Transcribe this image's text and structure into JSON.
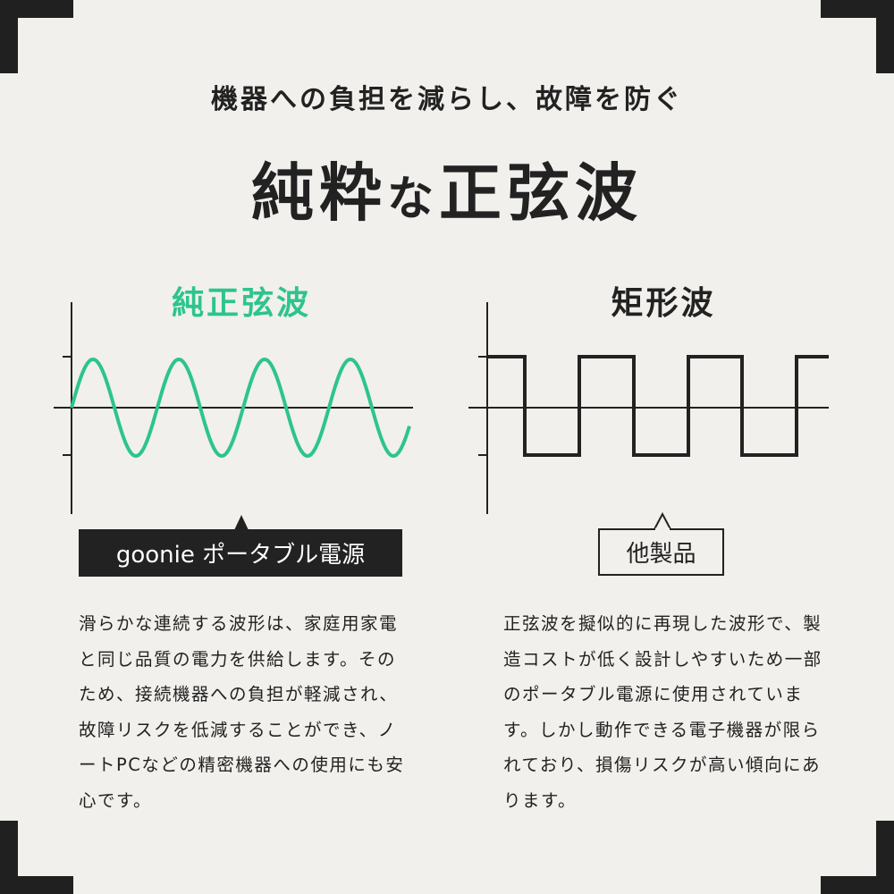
{
  "header": {
    "subtitle": "機器への負担を減らし、故障を防ぐ",
    "title_a": "純粋",
    "title_b": "な",
    "title_c": "正弦波"
  },
  "colors": {
    "accent": "#2dc48d",
    "dark": "#222222",
    "background": "#f1f0ec"
  },
  "left": {
    "title": "純正弦波",
    "wave": "sine",
    "badge": "goonie ポータブル電源",
    "body": "滑らかな連続する波形は、家庭用家電と同じ品質の電力を供給します。そのため、接続機器への負担が軽減され、故障リスクを低減することができ、ノートPCなどの精密機器への使用にも安心です。"
  },
  "right": {
    "title": "矩形波",
    "wave": "square",
    "badge": "他製品",
    "body": "正弦波を擬似的に再現した波形で、製造コストが低く設計しやすいため一部のポータブル電源に使用されています。しかし動作できる電子機器が限られており、損傷リスクが高い傾向にあります。"
  }
}
